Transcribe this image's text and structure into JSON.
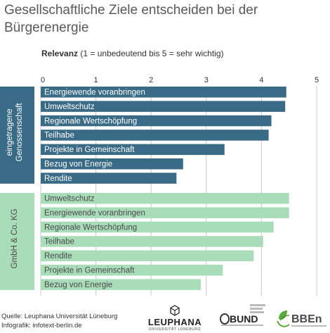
{
  "title": "Gesellschaftliche Ziele entscheiden bei der Bürgerenergie",
  "subtitle": {
    "label": "Relevanz",
    "text": "(1 = unbedeutend bis 5 = sehr wichtig)"
  },
  "colors": {
    "group1": "#3a6b86",
    "group2": "#a9dcb9",
    "gridline": "#c8c8c8",
    "bar_text_light": "#ffffff",
    "bar_text_dark": "#4a4a4a"
  },
  "chart_data": {
    "type": "bar",
    "orientation": "horizontal",
    "xlim": [
      0,
      5
    ],
    "xticks": [
      "0",
      "1",
      "2",
      "3",
      "4",
      "5"
    ],
    "grid": true,
    "groups": [
      {
        "name": "eingetragene Genossenschaft",
        "bars": [
          {
            "label": "Energiewende voranbringen",
            "value": 4.45
          },
          {
            "label": "Umweltschutz",
            "value": 4.43
          },
          {
            "label": "Regionale Wertschöpfung",
            "value": 4.18
          },
          {
            "label": "Teilhabe",
            "value": 4.13
          },
          {
            "label": "Projekte in Gemeinschaft",
            "value": 3.33
          },
          {
            "label": "Bezug von Energie",
            "value": 2.58
          },
          {
            "label": "Rendite",
            "value": 2.46
          }
        ]
      },
      {
        "name": "GmbH & Co. KG",
        "bars": [
          {
            "label": "Umweltschutz",
            "value": 4.5
          },
          {
            "label": "Energiewende voranbringen",
            "value": 4.5
          },
          {
            "label": "Regionale Wertschöpfung",
            "value": 4.22
          },
          {
            "label": "Teilhabe",
            "value": 4.03
          },
          {
            "label": "Rendite",
            "value": 3.86
          },
          {
            "label": "Projekte in Gemeinschaft",
            "value": 3.3
          },
          {
            "label": "Bezug von Energie",
            "value": 2.9
          }
        ]
      }
    ]
  },
  "source": {
    "line1": "Quelle: Leuphana Universität Lüneburg",
    "line2": "Infografik: infotext-berlin.de"
  },
  "logos": {
    "leuphana": "LEUPHANA",
    "leuphana_sub": "UNIVERSITÄT LÜNEBURG",
    "bund": "BUND",
    "bben": "BBEn",
    "bund_icon": "bund-logo-icon",
    "bben_icon": "bben-logo-icon"
  }
}
